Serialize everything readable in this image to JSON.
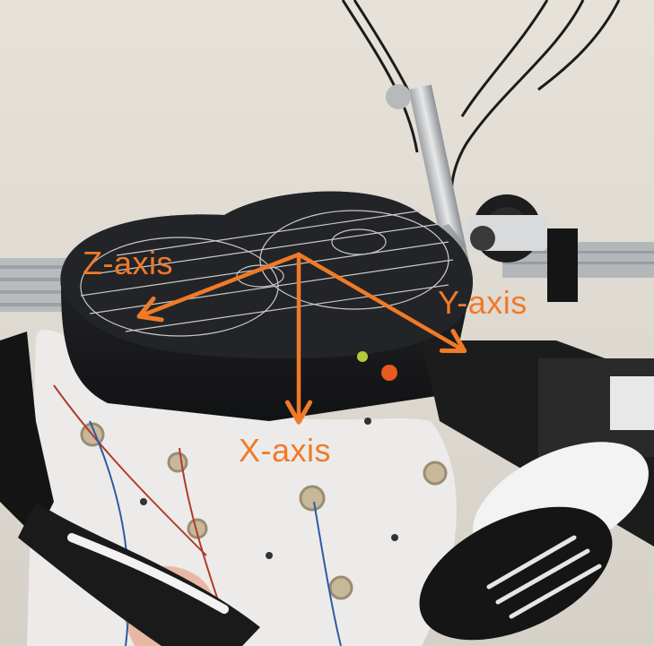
{
  "scene": {
    "subject": "coil-holder-device",
    "colors": {
      "wall": "#e4e0d8",
      "coil_body": "#1e1f22",
      "coil_lines": "#c9c9c9",
      "arm_metal": "#cfd0d2",
      "cap_fabric": "#ecebea",
      "skin": "#e7b9a4",
      "knob": "#171717",
      "accent": "#f07a28"
    }
  },
  "axes": {
    "color": "#f07a28",
    "z_label": "Z-axis",
    "y_label": "Y-axis",
    "x_label": "X-axis"
  }
}
